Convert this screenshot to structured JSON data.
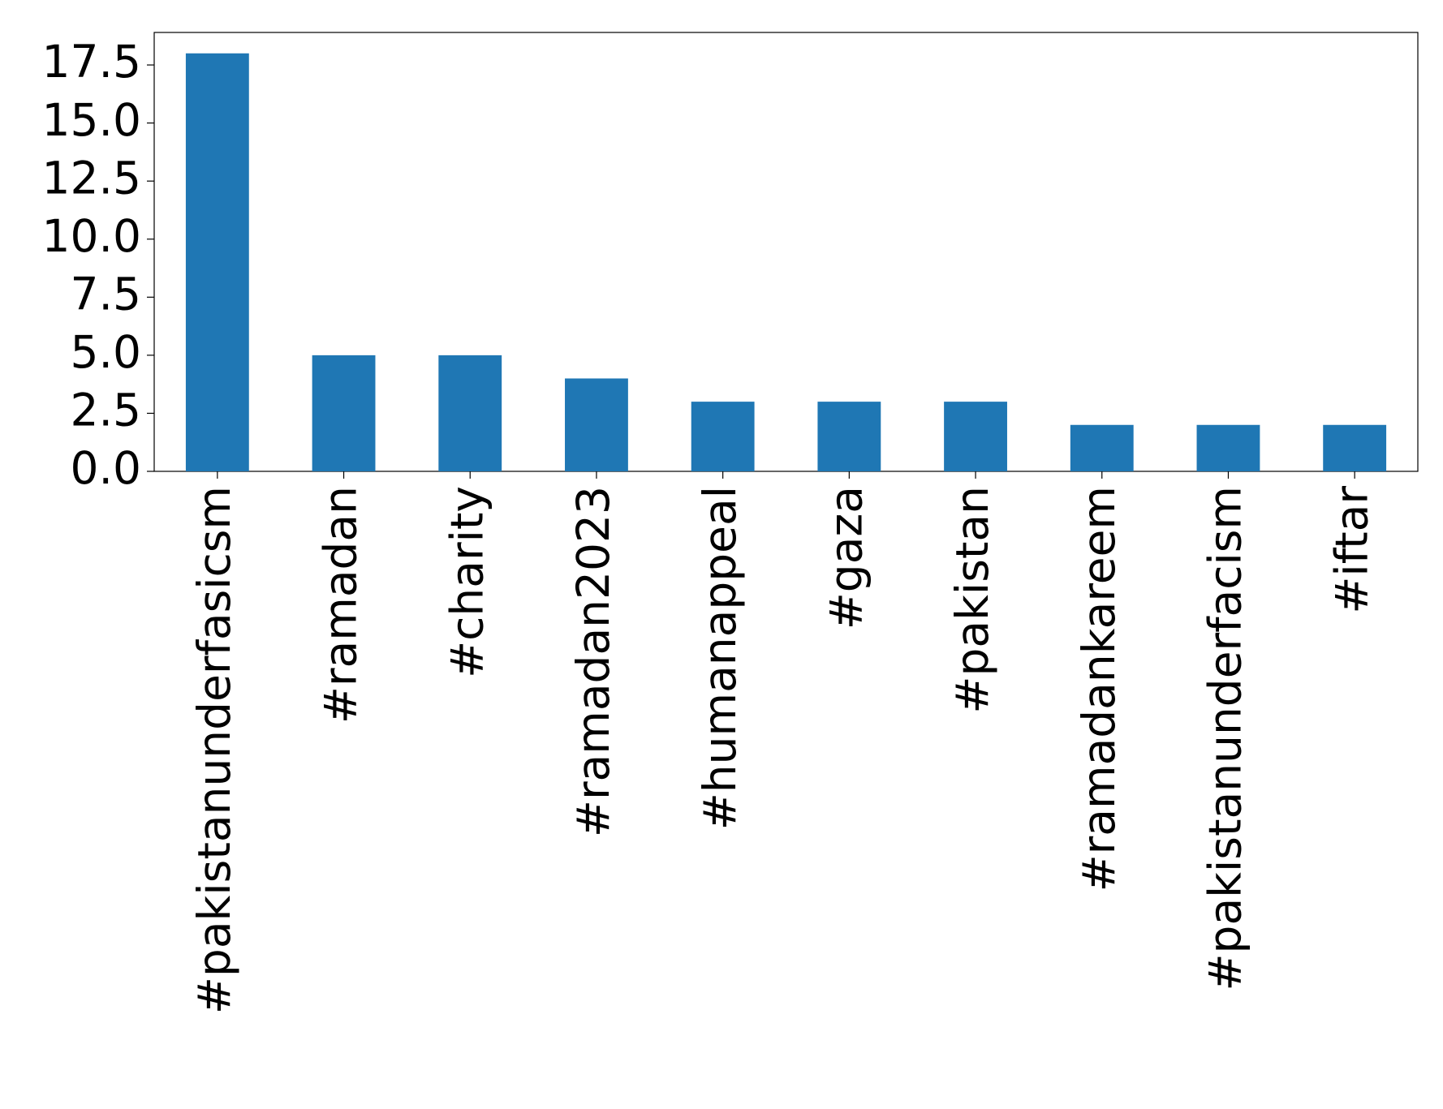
{
  "chart_data": {
    "type": "bar",
    "categories": [
      "#pakistanunderfasicsm",
      "#ramadan",
      "#charity",
      "#ramadan2023",
      "#humanappeal",
      "#gaza",
      "#pakistan",
      "#ramadankareem",
      "#pakistanunderfacism",
      "#iftar"
    ],
    "values": [
      18,
      5,
      5,
      4,
      3,
      3,
      3,
      2,
      2,
      2
    ],
    "color": "#1f77b4",
    "ylim": [
      0,
      18.9
    ],
    "yticks": [
      {
        "value": 0,
        "label": "0.0"
      },
      2.5,
      {
        "value": 5,
        "label": "5.0"
      },
      7.5,
      {
        "value": 10,
        "label": "10.0"
      },
      12.5,
      {
        "value": 15,
        "label": "15.0"
      },
      17.5
    ],
    "grid": false
  }
}
